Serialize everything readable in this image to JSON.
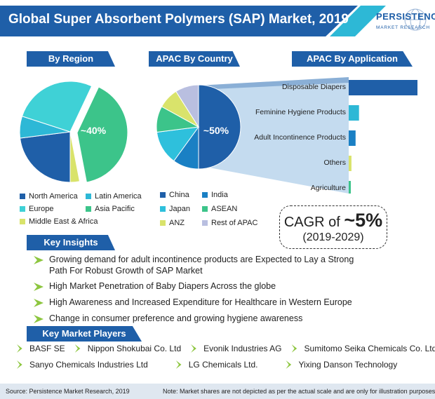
{
  "header": {
    "title": "Global Super Absorbent Polymers (SAP) Market, 2019",
    "logo_main": "PERSISTENCE",
    "logo_sub": "MARKET RESEARCH"
  },
  "sections": {
    "by_region": "By Region",
    "apac_by_country": "APAC By Country",
    "apac_by_application": "APAC By Application",
    "key_insights": "Key Insights",
    "key_market_players": "Key Market Players"
  },
  "chart_data": [
    {
      "type": "pie",
      "title": "By Region",
      "labels": [
        "North America",
        "Latin America",
        "Europe",
        "Asia Pacific",
        "Middle East & Africa"
      ],
      "values": [
        23,
        7,
        27,
        40,
        3
      ],
      "colors": [
        "#1f5fa8",
        "#2db8d6",
        "#3fd1d6",
        "#3cc48a",
        "#d9e36b"
      ],
      "annotations": [
        {
          "slice": "Asia Pacific",
          "text": "~40%"
        }
      ],
      "legend": "bottom"
    },
    {
      "type": "pie",
      "title": "APAC By Country",
      "labels": [
        "China",
        "India",
        "Japan",
        "ASEAN",
        "ANZ",
        "Rest of APAC"
      ],
      "values": [
        50,
        10,
        13,
        10,
        8,
        9
      ],
      "colors": [
        "#1f5fa8",
        "#1a80c4",
        "#2ec0dc",
        "#3cc48a",
        "#d9e36b",
        "#b9bfe0"
      ],
      "annotations": [
        {
          "slice": "China",
          "text": "~50%"
        }
      ],
      "legend": "bottom"
    },
    {
      "type": "bar",
      "orientation": "horizontal",
      "title": "APAC By Application",
      "categories": [
        "Disposable Diapers",
        "Feminine Hygiene Products",
        "Adult Incontinence Products",
        "Others",
        "Agriculture"
      ],
      "values": [
        100,
        15,
        10,
        4,
        3
      ],
      "colors": [
        "#1f5fa8",
        "#2db8d6",
        "#1a80c4",
        "#d9e36b",
        "#3cc48a"
      ]
    }
  ],
  "region_legend": [
    {
      "label": "North America",
      "color": "#1f5fa8"
    },
    {
      "label": "Latin America",
      "color": "#2db8d6"
    },
    {
      "label": "Europe",
      "color": "#3fd1d6"
    },
    {
      "label": "Asia Pacific",
      "color": "#3cc48a"
    },
    {
      "label": "Middle East & Africa",
      "color": "#d9e36b"
    }
  ],
  "country_legend": [
    {
      "label": "China",
      "color": "#1f5fa8"
    },
    {
      "label": "India",
      "color": "#1a80c4"
    },
    {
      "label": "Japan",
      "color": "#2ec0dc"
    },
    {
      "label": "ASEAN",
      "color": "#3cc48a"
    },
    {
      "label": "ANZ",
      "color": "#d9e36b"
    },
    {
      "label": "Rest of APAC",
      "color": "#b9bfe0"
    }
  ],
  "cagr": {
    "prefix": "CAGR of ",
    "value": "~5%",
    "period": "(2019-2029)"
  },
  "insights": [
    "Growing demand for adult incontinence products are Expected to Lay a Strong Path For Robust Growth of SAP Market",
    "High Market Penetration of Baby Diapers Across the globe",
    "High Awareness and Increased Expenditure for Healthcare in Western Europe",
    "Change in consumer preference and growing hygiene awareness"
  ],
  "players": [
    "BASF SE",
    "Nippon Shokubai Co. Ltd",
    "Evonik Industries AG",
    "Sumitomo Seika Chemicals Co. Ltd.",
    "Sanyo Chemicals Industries Ltd",
    "LG Chemicals Ltd.",
    "Yixing Danson Technology"
  ],
  "footer": {
    "source": "Source: Persistence Market Research, 2019",
    "note": "Note: Market shares are not depicted as per the actual scale and are only for illustration purposes"
  },
  "colors": {
    "brand_blue": "#1f5fa8",
    "accent_cyan": "#2db8d6",
    "arrow_green": "#8dc63f"
  }
}
